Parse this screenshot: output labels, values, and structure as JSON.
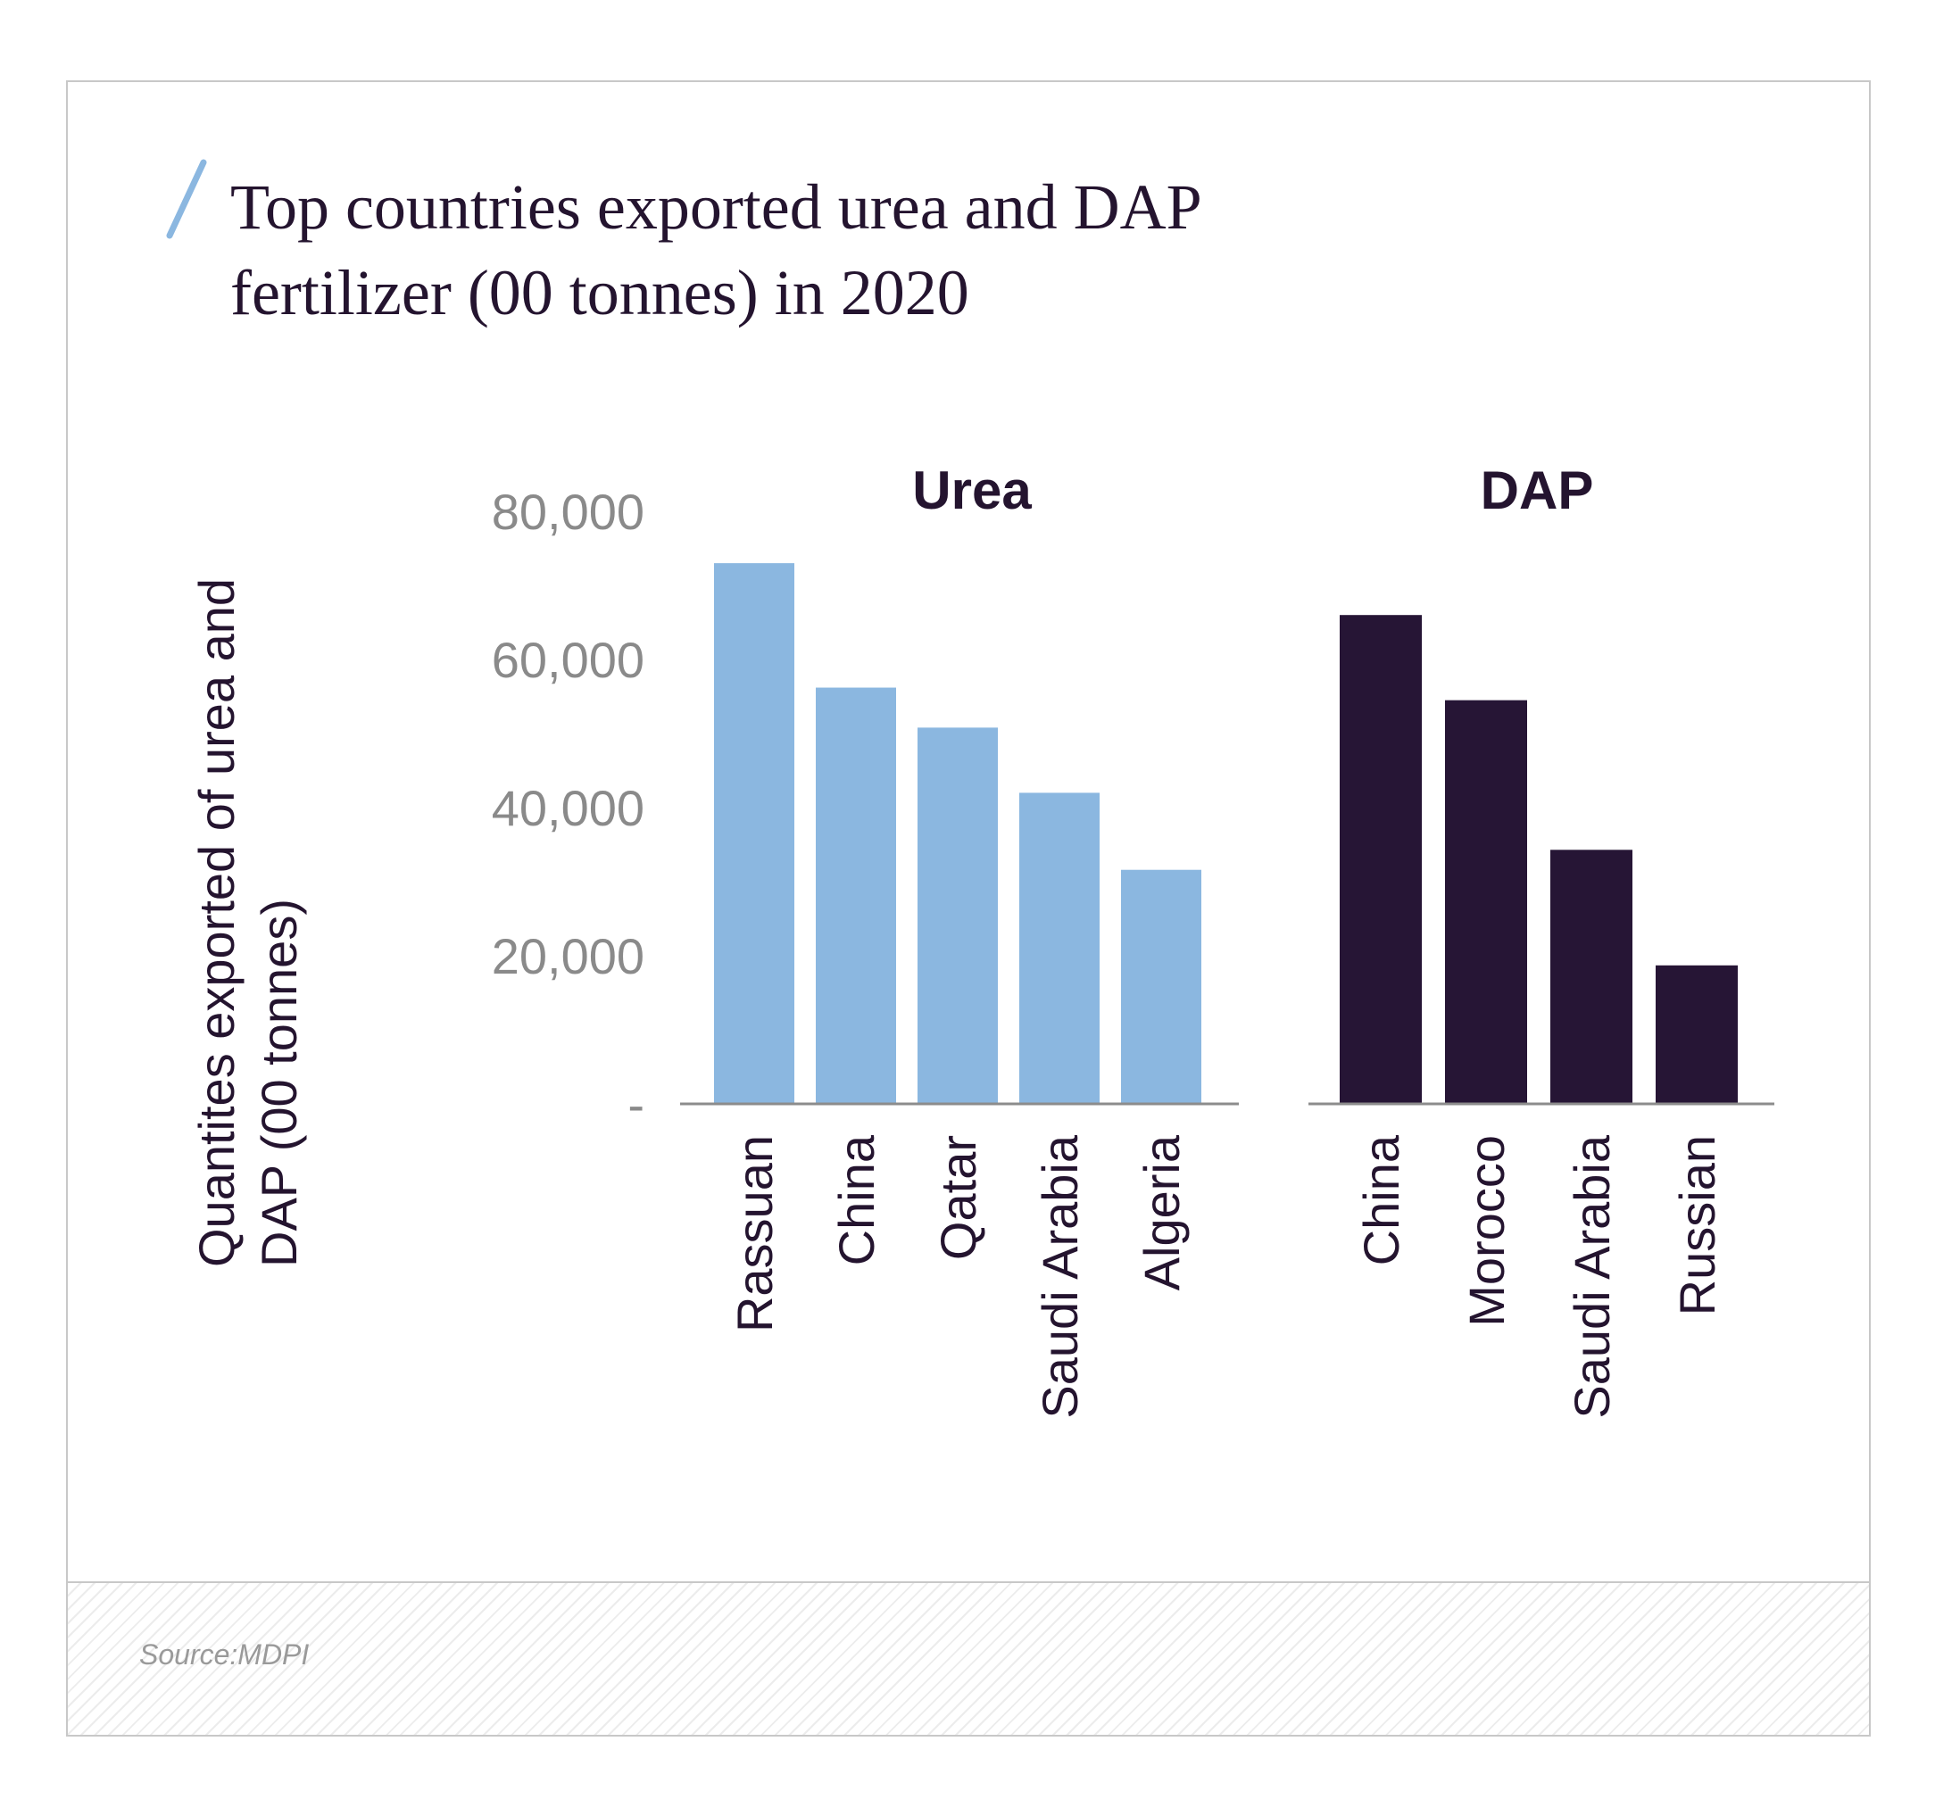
{
  "title": "Top countries exported urea and DAP\nfertilizer (00 tonnes) in 2020",
  "source": "Source:MDPI",
  "colors": {
    "urea": "#8bb7e0",
    "dap": "#261535",
    "axis": "#8c8c8c",
    "tick": "#8a8a8a",
    "text": "#24142f",
    "accent": "#8bb7e0"
  },
  "chart_data": {
    "type": "bar",
    "ylabel": "Quantites exported of urea and DAP (00 tonnes)",
    "ylim": [
      0,
      80000
    ],
    "yticks": [
      0,
      20000,
      40000,
      60000,
      80000
    ],
    "ytick_labels": [
      "-",
      "20,000",
      "40,000",
      "60,000",
      "80,000"
    ],
    "grid": false,
    "panels": [
      {
        "name": "Urea",
        "categories": [
          "Rassuan",
          "China",
          "Qatar",
          "Saudi Arabia",
          "Algeria"
        ],
        "values": [
          73000,
          56200,
          50800,
          42000,
          31600
        ]
      },
      {
        "name": "DAP",
        "categories": [
          "China",
          "Morocco",
          "Saudi Arabia",
          "Russian"
        ],
        "values": [
          66000,
          54500,
          34300,
          18700
        ]
      }
    ]
  }
}
